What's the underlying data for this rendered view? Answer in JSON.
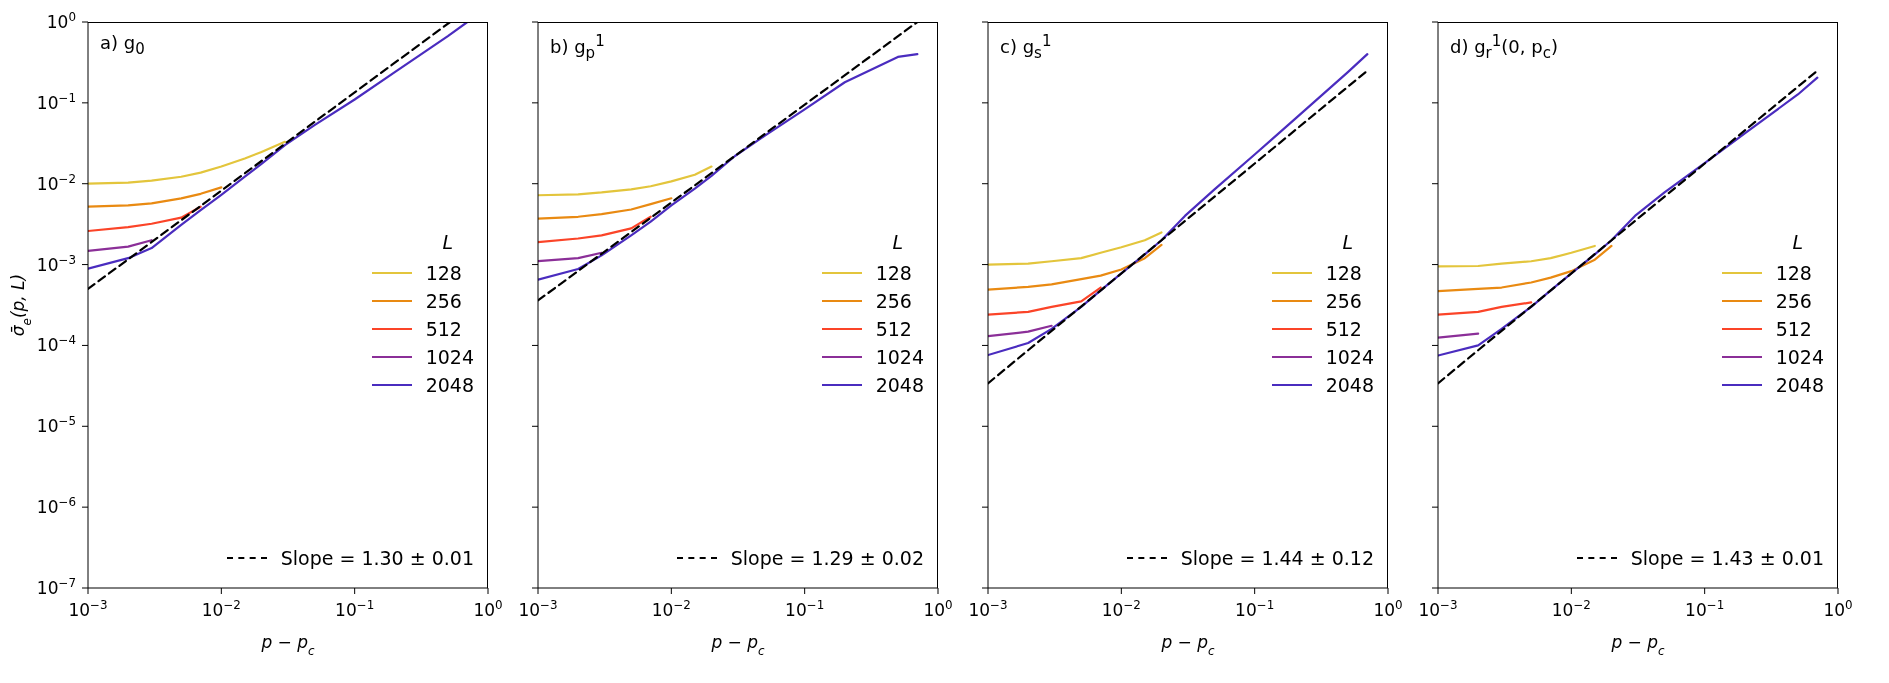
{
  "chart_data": [
    {
      "type": "line",
      "title": "a) g$_{0}$",
      "xlabel": "p − p$_{c}$",
      "ylabel": "σ̄$_{e}$(p, L)",
      "legend_title": "L",
      "legend": "right",
      "log": "xy",
      "xlim": [
        0.001,
        1
      ],
      "xticks": [
        {
          "value": 0.001,
          "label": "10$^{−3}$"
        },
        {
          "value": 0.01,
          "label": "10$^{−2}$"
        },
        {
          "value": 0.1,
          "label": "10$^{−1}$"
        },
        {
          "value": 1,
          "label": "10$^{0}$"
        }
      ],
      "ylim": [
        1e-07,
        1
      ],
      "yticks": [
        {
          "value": 1e-07,
          "label": "10$^{−7}$"
        },
        {
          "value": 1e-06,
          "label": "10$^{−6}$"
        },
        {
          "value": 1e-05,
          "label": "10$^{−5}$"
        },
        {
          "value": 0.0001,
          "label": "10$^{−4}$"
        },
        {
          "value": 0.001,
          "label": "10$^{−3}$"
        },
        {
          "value": 0.01,
          "label": "10$^{−2}$"
        },
        {
          "value": 0.1,
          "label": "10$^{−1}$"
        },
        {
          "value": 1,
          "label": "10$^{0}$"
        }
      ],
      "x": [
        0.001,
        0.002,
        0.003,
        0.005,
        0.007,
        0.01,
        0.015,
        0.02,
        0.03,
        0.05,
        0.1,
        0.2,
        0.5,
        0.7
      ],
      "series": [
        {
          "name": "128",
          "color": "#e3c53c",
          "values": [
            0.01,
            0.0103,
            0.0109,
            0.0122,
            0.0137,
            0.0163,
            0.0205,
            0.0247,
            0.033,
            null,
            null,
            null,
            null,
            null
          ]
        },
        {
          "name": "256",
          "color": "#e98a12",
          "values": [
            0.0052,
            0.0054,
            0.0057,
            0.0066,
            0.0075,
            0.009,
            null,
            null,
            null,
            null,
            null,
            null,
            null,
            null
          ]
        },
        {
          "name": "512",
          "color": "#fb4428",
          "values": [
            0.0026,
            0.0029,
            0.0032,
            0.0038,
            0.0052,
            null,
            null,
            null,
            null,
            null,
            null,
            null,
            null,
            null
          ]
        },
        {
          "name": "1024",
          "color": "#8b2f98",
          "values": [
            0.00148,
            0.00167,
            0.002,
            null,
            null,
            null,
            null,
            null,
            null,
            null,
            null,
            null,
            null,
            null
          ]
        },
        {
          "name": "2048",
          "color": "#4a2cbf",
          "values": [
            0.00089,
            0.0012,
            0.0016,
            0.0031,
            0.0047,
            0.0073,
            0.0122,
            0.0176,
            0.03,
            0.053,
            0.11,
            0.24,
            0.67,
            1.0
          ]
        },
        {
          "name": "Slope = 1.30 ± 0.01",
          "color": "#000000",
          "line_style": "dashed",
          "x": [
            0.001,
            0.52
          ],
          "values": [
            0.0005,
            1
          ]
        }
      ]
    },
    {
      "type": "line",
      "title": "b) g$_{p}$$^{1}$",
      "xlabel": "p − p$_{c}$",
      "legend_title": "L",
      "legend": "right",
      "log": "xy",
      "tick_labels": "x",
      "xlim": [
        0.001,
        1
      ],
      "xticks": [
        {
          "value": 0.001,
          "label": "10$^{−3}$"
        },
        {
          "value": 0.01,
          "label": "10$^{−2}$"
        },
        {
          "value": 0.1,
          "label": "10$^{−1}$"
        },
        {
          "value": 1,
          "label": "10$^{0}$"
        }
      ],
      "ylim": [
        1e-07,
        1
      ],
      "yticks": [
        1e-07,
        1e-06,
        1e-05,
        0.0001,
        0.001,
        0.01,
        0.1,
        1
      ],
      "x": [
        0.001,
        0.002,
        0.003,
        0.005,
        0.007,
        0.01,
        0.015,
        0.02,
        0.03,
        0.05,
        0.1,
        0.2,
        0.5,
        0.7
      ],
      "series": [
        {
          "name": "128",
          "color": "#e3c53c",
          "values": [
            0.0072,
            0.0074,
            0.0078,
            0.0085,
            0.0093,
            0.0107,
            0.0129,
            0.0163,
            null,
            null,
            null,
            null,
            null,
            null
          ]
        },
        {
          "name": "256",
          "color": "#e98a12",
          "values": [
            0.0037,
            0.0039,
            0.0042,
            0.0048,
            0.0056,
            0.0066,
            null,
            null,
            null,
            null,
            null,
            null,
            null,
            null
          ]
        },
        {
          "name": "512",
          "color": "#fb4428",
          "values": [
            0.0019,
            0.0021,
            0.0023,
            0.0028,
            0.0039,
            null,
            null,
            null,
            null,
            null,
            null,
            null,
            null,
            null
          ]
        },
        {
          "name": "1024",
          "color": "#8b2f98",
          "values": [
            0.0011,
            0.0012,
            0.0014,
            null,
            null,
            null,
            null,
            null,
            null,
            null,
            null,
            null,
            null,
            null
          ]
        },
        {
          "name": "2048",
          "color": "#4a2cbf",
          "values": [
            0.00065,
            0.00088,
            0.0013,
            0.0023,
            0.0034,
            0.0054,
            0.0087,
            0.0125,
            0.022,
            0.039,
            0.083,
            0.18,
            0.37,
            0.4
          ]
        },
        {
          "name": "Slope = 1.29 ± 0.02",
          "color": "#000000",
          "line_style": "dashed",
          "x": [
            0.001,
            0.7
          ],
          "values": [
            0.00036,
            1
          ]
        }
      ]
    },
    {
      "type": "line",
      "title": "c) g$_{s}$$^{1}$",
      "xlabel": "p − p$_{c}$",
      "legend_title": "L",
      "legend": "right",
      "log": "xy",
      "tick_labels": "x",
      "xlim": [
        0.001,
        1
      ],
      "xticks": [
        {
          "value": 0.001,
          "label": "10$^{−3}$"
        },
        {
          "value": 0.01,
          "label": "10$^{−2}$"
        },
        {
          "value": 0.1,
          "label": "10$^{−1}$"
        },
        {
          "value": 1,
          "label": "10$^{0}$"
        }
      ],
      "ylim": [
        1e-07,
        1
      ],
      "yticks": [
        1e-07,
        1e-06,
        1e-05,
        0.0001,
        0.001,
        0.01,
        0.1,
        1
      ],
      "x": [
        0.001,
        0.002,
        0.003,
        0.005,
        0.007,
        0.01,
        0.015,
        0.02,
        0.03,
        0.05,
        0.1,
        0.2,
        0.5,
        0.7
      ],
      "series": [
        {
          "name": "128",
          "color": "#e3c53c",
          "values": [
            0.001,
            0.00103,
            0.0011,
            0.0012,
            0.0014,
            0.00164,
            0.002,
            0.0025,
            null,
            null,
            null,
            null,
            null,
            null
          ]
        },
        {
          "name": "256",
          "color": "#e98a12",
          "values": [
            0.00049,
            0.00053,
            0.00057,
            0.00066,
            0.00073,
            0.00087,
            0.0012,
            0.00175,
            null,
            null,
            null,
            null,
            null,
            null
          ]
        },
        {
          "name": "512",
          "color": "#fb4428",
          "values": [
            0.00024,
            0.00026,
            0.0003,
            0.00035,
            0.00052,
            null,
            null,
            null,
            null,
            null,
            null,
            null,
            null,
            null
          ]
        },
        {
          "name": "1024",
          "color": "#8b2f98",
          "values": [
            0.00013,
            0.000148,
            0.000175,
            null,
            null,
            null,
            null,
            null,
            null,
            null,
            null,
            null,
            null,
            null
          ]
        },
        {
          "name": "2048",
          "color": "#4a2cbf",
          "values": [
            7.6e-05,
            0.000107,
            0.00016,
            0.0003,
            0.00048,
            0.00078,
            0.00134,
            0.002,
            0.004,
            0.0085,
            0.023,
            0.063,
            0.24,
            0.4
          ]
        },
        {
          "name": "Slope = 1.44 ± 0.12",
          "color": "#000000",
          "line_style": "dashed",
          "x": [
            0.001,
            0.7
          ],
          "values": [
            3.4e-05,
            0.25
          ]
        }
      ]
    },
    {
      "type": "line",
      "title": "d) g$_{r}$$^{1}$(0, p$_{c}$)",
      "xlabel": "p − p$_{c}$",
      "legend_title": "L",
      "legend": "right",
      "log": "xy",
      "tick_labels": "x",
      "xlim": [
        0.001,
        1
      ],
      "xticks": [
        {
          "value": 0.001,
          "label": "10$^{−3}$"
        },
        {
          "value": 0.01,
          "label": "10$^{−2}$"
        },
        {
          "value": 0.1,
          "label": "10$^{−1}$"
        },
        {
          "value": 1,
          "label": "10$^{0}$"
        }
      ],
      "ylim": [
        1e-07,
        1
      ],
      "yticks": [
        1e-07,
        1e-06,
        1e-05,
        0.0001,
        0.001,
        0.01,
        0.1,
        1
      ],
      "x": [
        0.001,
        0.002,
        0.003,
        0.005,
        0.007,
        0.01,
        0.015,
        0.02,
        0.03,
        0.05,
        0.1,
        0.2,
        0.5,
        0.7
      ],
      "series": [
        {
          "name": "128",
          "color": "#e3c53c",
          "values": [
            0.00095,
            0.00096,
            0.00103,
            0.0011,
            0.0012,
            0.0014,
            0.0017,
            null,
            null,
            null,
            null,
            null,
            null,
            null
          ]
        },
        {
          "name": "256",
          "color": "#e98a12",
          "values": [
            0.00047,
            0.0005,
            0.00052,
            0.0006,
            0.00069,
            0.00083,
            0.00115,
            0.0017,
            null,
            null,
            null,
            null,
            null,
            null
          ]
        },
        {
          "name": "512",
          "color": "#fb4428",
          "values": [
            0.00024,
            0.00026,
            0.0003,
            0.00034,
            null,
            null,
            null,
            null,
            null,
            null,
            null,
            null,
            null,
            null
          ]
        },
        {
          "name": "1024",
          "color": "#8b2f98",
          "values": [
            0.000125,
            0.00014,
            null,
            null,
            null,
            null,
            null,
            null,
            null,
            null,
            null,
            null,
            null,
            null
          ]
        },
        {
          "name": "2048",
          "color": "#4a2cbf",
          "values": [
            7.5e-05,
            0.0001,
            0.00016,
            0.0003,
            0.00048,
            0.00078,
            0.00134,
            0.002,
            0.004,
            0.0078,
            0.018,
            0.042,
            0.127,
            0.205
          ]
        },
        {
          "name": "Slope = 1.43 ± 0.01",
          "color": "#000000",
          "line_style": "dashed",
          "x": [
            0.001,
            0.7
          ],
          "values": [
            3.4e-05,
            0.25
          ]
        }
      ]
    }
  ]
}
